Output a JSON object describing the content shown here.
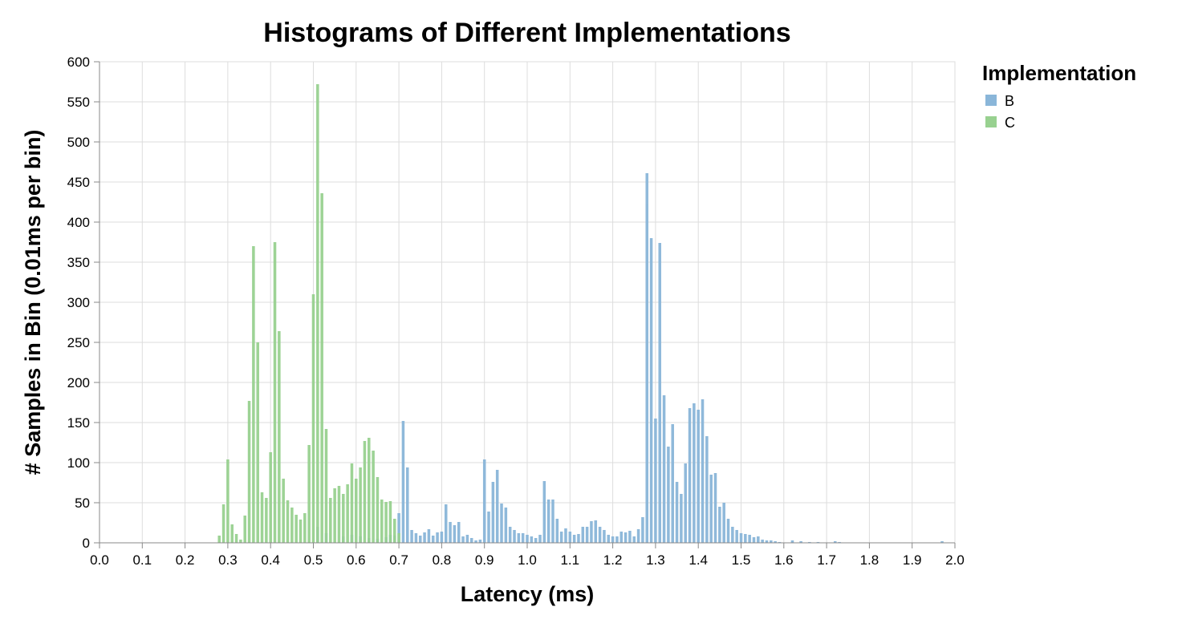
{
  "chart_data": {
    "type": "bar",
    "title": "Histograms of Different Implementations",
    "xlabel": "Latency (ms)",
    "ylabel": "# Samples in Bin (0.01ms per bin)",
    "xlim": [
      0.0,
      2.0
    ],
    "ylim": [
      0,
      600
    ],
    "bin_width": 0.01,
    "x_ticks": [
      "0.0",
      "0.1",
      "0.2",
      "0.3",
      "0.4",
      "0.5",
      "0.6",
      "0.7",
      "0.8",
      "0.9",
      "1.0",
      "1.1",
      "1.2",
      "1.3",
      "1.4",
      "1.5",
      "1.6",
      "1.7",
      "1.8",
      "1.9",
      "2.0"
    ],
    "y_ticks": [
      "0",
      "50",
      "100",
      "150",
      "200",
      "250",
      "300",
      "350",
      "400",
      "450",
      "500",
      "550",
      "600"
    ],
    "grid": true,
    "legend": {
      "title": "Implementation",
      "position": "top-right"
    },
    "series": [
      {
        "name": "B",
        "color": "#8ab6d9",
        "points": [
          {
            "x": 0.51,
            "y": 20
          },
          {
            "x": 0.53,
            "y": 12
          },
          {
            "x": 0.57,
            "y": 8
          },
          {
            "x": 0.59,
            "y": 10
          },
          {
            "x": 0.61,
            "y": 8
          },
          {
            "x": 0.63,
            "y": 6
          },
          {
            "x": 0.65,
            "y": 5
          },
          {
            "x": 0.67,
            "y": 7
          },
          {
            "x": 0.68,
            "y": 10
          },
          {
            "x": 0.69,
            "y": 9
          },
          {
            "x": 0.7,
            "y": 37
          },
          {
            "x": 0.71,
            "y": 152
          },
          {
            "x": 0.72,
            "y": 94
          },
          {
            "x": 0.73,
            "y": 16
          },
          {
            "x": 0.74,
            "y": 12
          },
          {
            "x": 0.75,
            "y": 9
          },
          {
            "x": 0.76,
            "y": 13
          },
          {
            "x": 0.77,
            "y": 17
          },
          {
            "x": 0.78,
            "y": 9
          },
          {
            "x": 0.79,
            "y": 13
          },
          {
            "x": 0.8,
            "y": 14
          },
          {
            "x": 0.81,
            "y": 48
          },
          {
            "x": 0.82,
            "y": 26
          },
          {
            "x": 0.83,
            "y": 22
          },
          {
            "x": 0.84,
            "y": 26
          },
          {
            "x": 0.85,
            "y": 8
          },
          {
            "x": 0.86,
            "y": 10
          },
          {
            "x": 0.87,
            "y": 6
          },
          {
            "x": 0.88,
            "y": 3
          },
          {
            "x": 0.89,
            "y": 4
          },
          {
            "x": 0.9,
            "y": 104
          },
          {
            "x": 0.91,
            "y": 39
          },
          {
            "x": 0.92,
            "y": 76
          },
          {
            "x": 0.93,
            "y": 91
          },
          {
            "x": 0.94,
            "y": 49
          },
          {
            "x": 0.95,
            "y": 44
          },
          {
            "x": 0.96,
            "y": 20
          },
          {
            "x": 0.97,
            "y": 16
          },
          {
            "x": 0.98,
            "y": 12
          },
          {
            "x": 0.99,
            "y": 12
          },
          {
            "x": 1.0,
            "y": 10
          },
          {
            "x": 1.01,
            "y": 8
          },
          {
            "x": 1.02,
            "y": 6
          },
          {
            "x": 1.03,
            "y": 10
          },
          {
            "x": 1.04,
            "y": 77
          },
          {
            "x": 1.05,
            "y": 54
          },
          {
            "x": 1.06,
            "y": 54
          },
          {
            "x": 1.07,
            "y": 30
          },
          {
            "x": 1.08,
            "y": 14
          },
          {
            "x": 1.09,
            "y": 18
          },
          {
            "x": 1.1,
            "y": 14
          },
          {
            "x": 1.11,
            "y": 10
          },
          {
            "x": 1.12,
            "y": 11
          },
          {
            "x": 1.13,
            "y": 20
          },
          {
            "x": 1.14,
            "y": 20
          },
          {
            "x": 1.15,
            "y": 27
          },
          {
            "x": 1.16,
            "y": 28
          },
          {
            "x": 1.17,
            "y": 20
          },
          {
            "x": 1.18,
            "y": 16
          },
          {
            "x": 1.19,
            "y": 10
          },
          {
            "x": 1.2,
            "y": 8
          },
          {
            "x": 1.21,
            "y": 8
          },
          {
            "x": 1.22,
            "y": 14
          },
          {
            "x": 1.23,
            "y": 13
          },
          {
            "x": 1.24,
            "y": 15
          },
          {
            "x": 1.25,
            "y": 8
          },
          {
            "x": 1.26,
            "y": 17
          },
          {
            "x": 1.27,
            "y": 32
          },
          {
            "x": 1.28,
            "y": 461
          },
          {
            "x": 1.29,
            "y": 380
          },
          {
            "x": 1.3,
            "y": 155
          },
          {
            "x": 1.31,
            "y": 374
          },
          {
            "x": 1.32,
            "y": 184
          },
          {
            "x": 1.33,
            "y": 120
          },
          {
            "x": 1.34,
            "y": 148
          },
          {
            "x": 1.35,
            "y": 76
          },
          {
            "x": 1.36,
            "y": 61
          },
          {
            "x": 1.37,
            "y": 99
          },
          {
            "x": 1.38,
            "y": 168
          },
          {
            "x": 1.39,
            "y": 174
          },
          {
            "x": 1.4,
            "y": 166
          },
          {
            "x": 1.41,
            "y": 179
          },
          {
            "x": 1.42,
            "y": 133
          },
          {
            "x": 1.43,
            "y": 85
          },
          {
            "x": 1.44,
            "y": 87
          },
          {
            "x": 1.45,
            "y": 45
          },
          {
            "x": 1.46,
            "y": 50
          },
          {
            "x": 1.47,
            "y": 30
          },
          {
            "x": 1.48,
            "y": 20
          },
          {
            "x": 1.49,
            "y": 16
          },
          {
            "x": 1.5,
            "y": 12
          },
          {
            "x": 1.51,
            "y": 11
          },
          {
            "x": 1.52,
            "y": 10
          },
          {
            "x": 1.53,
            "y": 7
          },
          {
            "x": 1.54,
            "y": 8
          },
          {
            "x": 1.55,
            "y": 4
          },
          {
            "x": 1.56,
            "y": 3
          },
          {
            "x": 1.57,
            "y": 3
          },
          {
            "x": 1.58,
            "y": 2
          },
          {
            "x": 1.59,
            "y": 1
          },
          {
            "x": 1.62,
            "y": 3
          },
          {
            "x": 1.64,
            "y": 2
          },
          {
            "x": 1.66,
            "y": 1
          },
          {
            "x": 1.68,
            "y": 1
          },
          {
            "x": 1.72,
            "y": 2
          },
          {
            "x": 1.73,
            "y": 1
          },
          {
            "x": 1.97,
            "y": 2
          }
        ]
      },
      {
        "name": "C",
        "color": "#98d190",
        "points": [
          {
            "x": 0.28,
            "y": 9
          },
          {
            "x": 0.29,
            "y": 48
          },
          {
            "x": 0.3,
            "y": 104
          },
          {
            "x": 0.31,
            "y": 23
          },
          {
            "x": 0.32,
            "y": 11
          },
          {
            "x": 0.33,
            "y": 4
          },
          {
            "x": 0.34,
            "y": 34
          },
          {
            "x": 0.35,
            "y": 177
          },
          {
            "x": 0.36,
            "y": 370
          },
          {
            "x": 0.37,
            "y": 250
          },
          {
            "x": 0.38,
            "y": 63
          },
          {
            "x": 0.39,
            "y": 56
          },
          {
            "x": 0.4,
            "y": 113
          },
          {
            "x": 0.41,
            "y": 375
          },
          {
            "x": 0.42,
            "y": 264
          },
          {
            "x": 0.43,
            "y": 80
          },
          {
            "x": 0.44,
            "y": 53
          },
          {
            "x": 0.45,
            "y": 44
          },
          {
            "x": 0.46,
            "y": 35
          },
          {
            "x": 0.47,
            "y": 29
          },
          {
            "x": 0.48,
            "y": 37
          },
          {
            "x": 0.49,
            "y": 122
          },
          {
            "x": 0.5,
            "y": 310
          },
          {
            "x": 0.51,
            "y": 572
          },
          {
            "x": 0.52,
            "y": 436
          },
          {
            "x": 0.53,
            "y": 142
          },
          {
            "x": 0.54,
            "y": 56
          },
          {
            "x": 0.55,
            "y": 68
          },
          {
            "x": 0.56,
            "y": 71
          },
          {
            "x": 0.57,
            "y": 61
          },
          {
            "x": 0.58,
            "y": 73
          },
          {
            "x": 0.59,
            "y": 99
          },
          {
            "x": 0.6,
            "y": 80
          },
          {
            "x": 0.61,
            "y": 94
          },
          {
            "x": 0.62,
            "y": 127
          },
          {
            "x": 0.63,
            "y": 131
          },
          {
            "x": 0.64,
            "y": 115
          },
          {
            "x": 0.65,
            "y": 82
          },
          {
            "x": 0.66,
            "y": 54
          },
          {
            "x": 0.67,
            "y": 51
          },
          {
            "x": 0.68,
            "y": 52
          },
          {
            "x": 0.69,
            "y": 30
          },
          {
            "x": 0.7,
            "y": 12
          }
        ]
      }
    ]
  }
}
